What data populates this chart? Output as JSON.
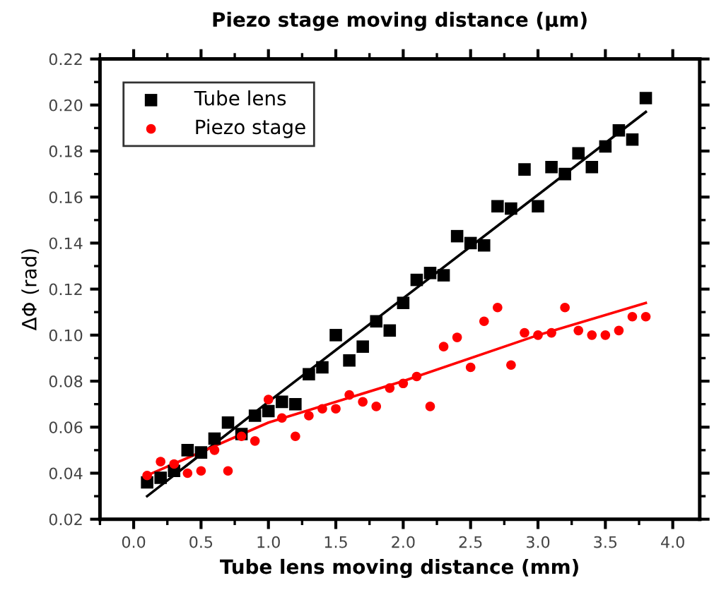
{
  "chart_data": {
    "type": "scatter",
    "xlabel": "Tube lens moving distance (mm)",
    "x2label": "Piezo stage moving distance (μm)",
    "ylabel": "ΔΦ (rad)",
    "xlim": [
      -0.25,
      4.2
    ],
    "xticks": [
      {
        "value": 0,
        "label": "0.0"
      },
      0.5,
      {
        "value": 1,
        "label": "1.0"
      },
      1.5,
      {
        "value": 2,
        "label": "2.0"
      },
      2.5,
      {
        "value": 3,
        "label": "3.0"
      },
      3.5,
      {
        "value": 4,
        "label": "4.0"
      }
    ],
    "ylim": [
      0.02,
      0.22
    ],
    "yticks": [
      0.02,
      0.04,
      0.06,
      0.08,
      {
        "value": 0.1,
        "label": "0.10"
      },
      0.12,
      0.14,
      0.16,
      0.18,
      {
        "value": 0.2,
        "label": "0.20"
      },
      0.22
    ],
    "grid": false,
    "legend": "top left",
    "x": [
      0.1,
      0.2,
      0.3,
      0.4,
      0.5,
      0.6,
      0.7,
      0.8,
      0.9,
      1.0,
      1.1,
      1.2,
      1.3,
      1.4,
      1.5,
      1.6,
      1.7,
      1.8,
      1.9,
      2.0,
      2.1,
      2.2,
      2.3,
      2.4,
      2.5,
      2.6,
      2.7,
      2.8,
      2.9,
      3.0,
      3.1,
      3.2,
      3.3,
      3.4,
      3.5,
      3.6,
      3.7,
      3.8
    ],
    "series": [
      {
        "name": "Tube lens",
        "color": "#000000",
        "marker": "square",
        "values": [
          0.036,
          0.038,
          0.041,
          0.05,
          0.049,
          0.055,
          0.062,
          0.057,
          0.065,
          0.067,
          0.071,
          0.07,
          0.083,
          0.086,
          0.1,
          0.089,
          0.095,
          0.106,
          0.102,
          0.114,
          0.124,
          0.127,
          0.126,
          0.143,
          0.14,
          0.139,
          0.156,
          0.155,
          0.172,
          0.156,
          0.173,
          0.17,
          0.179,
          0.173,
          0.182,
          0.189,
          0.185,
          0.203
        ]
      },
      {
        "name": "Piezo stage",
        "color": "#ff0000",
        "marker": "circle",
        "values": [
          0.039,
          0.045,
          0.044,
          0.04,
          0.041,
          0.05,
          0.041,
          0.056,
          0.054,
          0.072,
          0.064,
          0.056,
          0.065,
          0.068,
          0.068,
          0.074,
          0.071,
          0.069,
          0.077,
          0.079,
          0.082,
          0.069,
          0.095,
          0.099,
          0.086,
          0.106,
          0.112,
          0.087,
          0.101,
          0.1,
          0.101,
          0.112,
          0.102,
          0.1,
          0.1,
          0.102,
          0.108,
          0.108
        ]
      },
      {
        "type": "line",
        "color": "#000000",
        "x": [
          0.1,
          1.0,
          2.0,
          3.0,
          3.8
        ],
        "values": [
          0.03,
          0.071,
          0.116,
          0.161,
          0.197
        ]
      },
      {
        "type": "line",
        "color": "#ff0000",
        "x": [
          0.1,
          1.0,
          2.0,
          3.0,
          3.8
        ],
        "values": [
          0.039,
          0.062,
          0.08,
          0.1,
          0.114
        ]
      }
    ]
  }
}
